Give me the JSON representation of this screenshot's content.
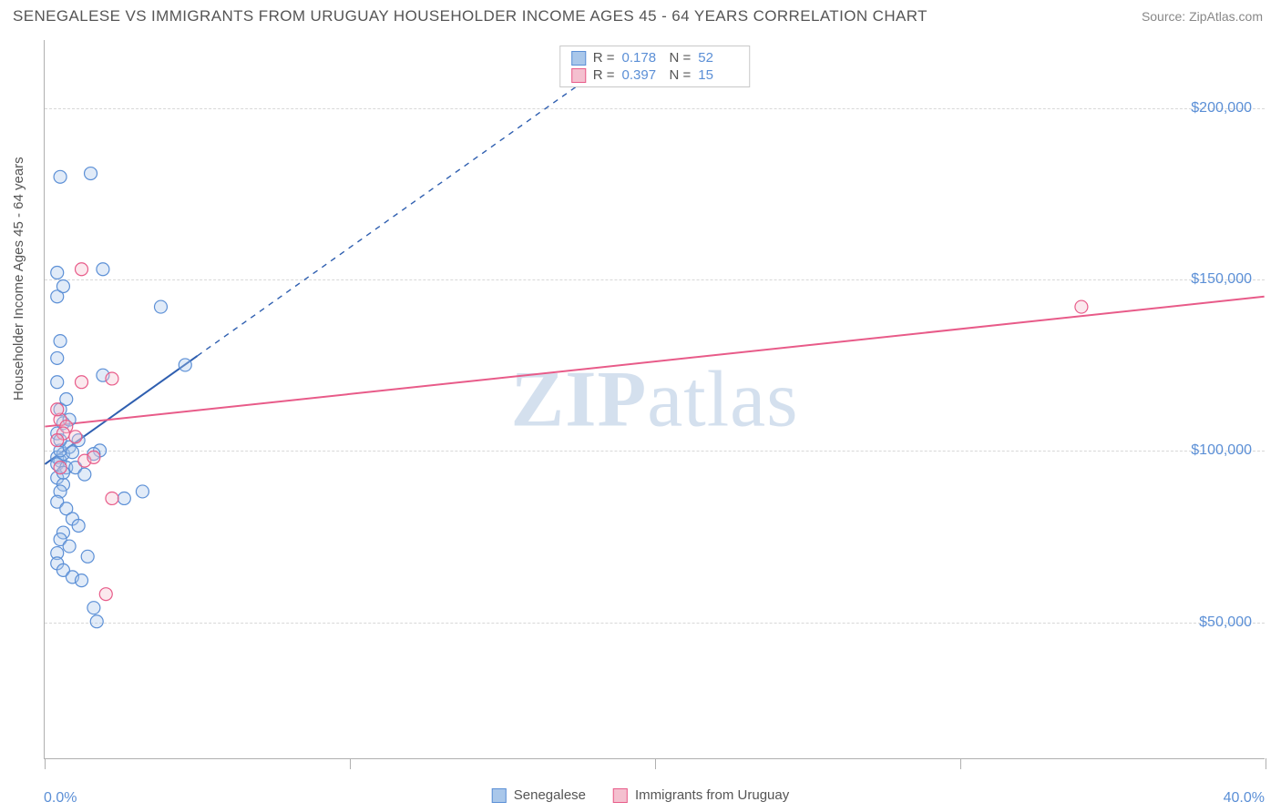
{
  "title": "SENEGALESE VS IMMIGRANTS FROM URUGUAY HOUSEHOLDER INCOME AGES 45 - 64 YEARS CORRELATION CHART",
  "source_prefix": "Source: ",
  "source_name": "ZipAtlas.com",
  "y_axis_title": "Householder Income Ages 45 - 64 years",
  "watermark": "ZIPatlas",
  "chart": {
    "type": "scatter",
    "x_domain": [
      0,
      40
    ],
    "y_domain": [
      10000,
      220000
    ],
    "x_ticks_pct": [
      0,
      10,
      20,
      30,
      40
    ],
    "x_label_min": "0.0%",
    "x_label_max": "40.0%",
    "y_gridlines": [
      50000,
      100000,
      150000,
      200000
    ],
    "y_tick_labels": [
      "$50,000",
      "$100,000",
      "$150,000",
      "$200,000"
    ],
    "background_color": "#ffffff",
    "grid_color": "#d8d8d8",
    "axis_color": "#b0b0b0",
    "tick_label_color": "#5b8fd6",
    "axis_title_color": "#555555",
    "marker_radius": 7,
    "series": [
      {
        "id": "senegalese",
        "label": "Senegalese",
        "fill": "#a9c7ea",
        "stroke": "#5b8fd6",
        "R": "0.178",
        "N": "52",
        "trend": {
          "x1": 0,
          "y1": 96000,
          "x2": 18,
          "y2": 210000,
          "color": "#2f5fb0",
          "width": 2,
          "dash_after_x": 5
        },
        "points": [
          [
            0.4,
            98000
          ],
          [
            0.5,
            97000
          ],
          [
            0.6,
            99000
          ],
          [
            0.4,
            96000
          ],
          [
            0.7,
            95000
          ],
          [
            0.5,
            100000
          ],
          [
            0.8,
            101000
          ],
          [
            0.4,
            92000
          ],
          [
            0.6,
            90000
          ],
          [
            0.5,
            88000
          ],
          [
            0.4,
            85000
          ],
          [
            0.7,
            83000
          ],
          [
            0.9,
            80000
          ],
          [
            1.1,
            78000
          ],
          [
            0.6,
            76000
          ],
          [
            0.5,
            74000
          ],
          [
            0.8,
            72000
          ],
          [
            0.4,
            70000
          ],
          [
            1.4,
            69000
          ],
          [
            3.2,
            88000
          ],
          [
            1.6,
            54000
          ],
          [
            1.7,
            50000
          ],
          [
            0.4,
            105000
          ],
          [
            0.6,
            108000
          ],
          [
            0.5,
            112000
          ],
          [
            0.7,
            115000
          ],
          [
            1.8,
            100000
          ],
          [
            1.6,
            99000
          ],
          [
            2.6,
            86000
          ],
          [
            0.4,
            120000
          ],
          [
            1.9,
            122000
          ],
          [
            0.5,
            132000
          ],
          [
            0.4,
            145000
          ],
          [
            0.6,
            148000
          ],
          [
            3.8,
            142000
          ],
          [
            0.4,
            152000
          ],
          [
            1.9,
            153000
          ],
          [
            0.5,
            180000
          ],
          [
            1.5,
            181000
          ],
          [
            4.6,
            125000
          ],
          [
            0.4,
            67000
          ],
          [
            0.6,
            65000
          ],
          [
            0.9,
            63000
          ],
          [
            1.2,
            62000
          ],
          [
            0.5,
            103000
          ],
          [
            1.0,
            95000
          ],
          [
            1.3,
            93000
          ],
          [
            0.8,
            109000
          ],
          [
            0.4,
            127000
          ],
          [
            0.6,
            93500
          ],
          [
            1.1,
            103000
          ],
          [
            0.9,
            99500
          ]
        ]
      },
      {
        "id": "uruguay",
        "label": "Immigrants from Uruguay",
        "fill": "#f4c0cf",
        "stroke": "#e85b89",
        "R": "0.397",
        "N": "15",
        "trend": {
          "x1": 0,
          "y1": 107000,
          "x2": 40,
          "y2": 145000,
          "color": "#e85b89",
          "width": 2,
          "dash_after_x": 40
        },
        "points": [
          [
            0.5,
            109000
          ],
          [
            0.7,
            107000
          ],
          [
            0.6,
            105000
          ],
          [
            0.4,
            103000
          ],
          [
            1.0,
            104000
          ],
          [
            1.3,
            97000
          ],
          [
            1.6,
            98000
          ],
          [
            0.5,
            95000
          ],
          [
            2.2,
            86000
          ],
          [
            2.0,
            58000
          ],
          [
            1.2,
            120000
          ],
          [
            2.2,
            121000
          ],
          [
            0.4,
            112000
          ],
          [
            1.2,
            153000
          ],
          [
            34.0,
            142000
          ]
        ]
      }
    ]
  },
  "legend_stats_prefix_R": "R  =",
  "legend_stats_prefix_N": "N  ="
}
